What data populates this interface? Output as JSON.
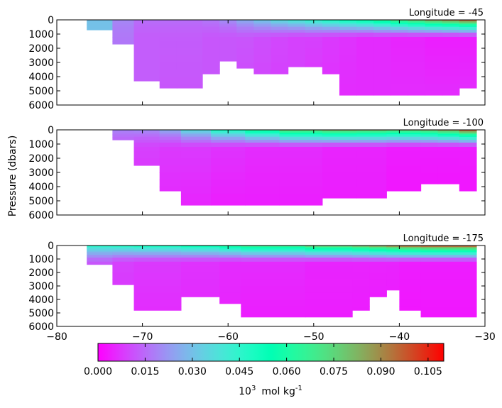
{
  "chart_data": {
    "type": "heatmap",
    "colormap": "rainbow",
    "ylabel": "Pressure (dbars)",
    "xlim": [
      -80,
      -30
    ],
    "ylim": [
      6000,
      0
    ],
    "x_ticks": [
      -80,
      -70,
      -60,
      -50,
      -40,
      -30
    ],
    "y_ticks": [
      0,
      1000,
      2000,
      3000,
      4000,
      5000,
      6000
    ],
    "colorbar": {
      "range": [
        0.0,
        0.11
      ],
      "ticks": [
        "0.000",
        "0.015",
        "0.030",
        "0.045",
        "0.060",
        "0.075",
        "0.090",
        "0.105"
      ],
      "label": "10",
      "label_exp": "3",
      "label_unit": "mol kg",
      "label_unit_exp": "-1"
    },
    "panels": [
      {
        "title": "Longitude = -45",
        "columns": [
          {
            "lat_left": -76.5,
            "lat_right": -73.5,
            "bottom_pressure": 700,
            "surface": 0.03,
            "deep": 0.03,
            "bottom": 0.03
          },
          {
            "lat_left": -73.5,
            "lat_right": -71.0,
            "bottom_pressure": 1700,
            "surface": 0.02,
            "deep": 0.017,
            "bottom": 0.017
          },
          {
            "lat_left": -71.0,
            "lat_right": -68.0,
            "bottom_pressure": 4300,
            "surface": 0.016,
            "deep": 0.013,
            "bottom": 0.013
          },
          {
            "lat_left": -68.0,
            "lat_right": -66.0,
            "bottom_pressure": 4800,
            "surface": 0.016,
            "deep": 0.013,
            "bottom": 0.012
          },
          {
            "lat_left": -66.0,
            "lat_right": -63.0,
            "bottom_pressure": 4800,
            "surface": 0.016,
            "deep": 0.013,
            "bottom": 0.012
          },
          {
            "lat_left": -63.0,
            "lat_right": -61.0,
            "bottom_pressure": 3800,
            "surface": 0.018,
            "deep": 0.012,
            "bottom": 0.012
          },
          {
            "lat_left": -61.0,
            "lat_right": -59.0,
            "bottom_pressure": 2900,
            "surface": 0.022,
            "deep": 0.012,
            "bottom": 0.012
          },
          {
            "lat_left": -59.0,
            "lat_right": -57.0,
            "bottom_pressure": 3400,
            "surface": 0.028,
            "deep": 0.012,
            "bottom": 0.011
          },
          {
            "lat_left": -57.0,
            "lat_right": -55.0,
            "bottom_pressure": 3800,
            "surface": 0.034,
            "deep": 0.011,
            "bottom": 0.01
          },
          {
            "lat_left": -55.0,
            "lat_right": -53.0,
            "bottom_pressure": 3800,
            "surface": 0.04,
            "deep": 0.01,
            "bottom": 0.009
          },
          {
            "lat_left": -53.0,
            "lat_right": -51.0,
            "bottom_pressure": 3300,
            "surface": 0.045,
            "deep": 0.009,
            "bottom": 0.009
          },
          {
            "lat_left": -51.0,
            "lat_right": -49.0,
            "bottom_pressure": 3300,
            "surface": 0.05,
            "deep": 0.009,
            "bottom": 0.008
          },
          {
            "lat_left": -49.0,
            "lat_right": -47.0,
            "bottom_pressure": 3800,
            "surface": 0.055,
            "deep": 0.008,
            "bottom": 0.007
          },
          {
            "lat_left": -47.0,
            "lat_right": -45.0,
            "bottom_pressure": 5300,
            "surface": 0.06,
            "deep": 0.007,
            "bottom": 0.006
          },
          {
            "lat_left": -45.0,
            "lat_right": -43.0,
            "bottom_pressure": 5300,
            "surface": 0.065,
            "deep": 0.006,
            "bottom": 0.006
          },
          {
            "lat_left": -43.0,
            "lat_right": -41.0,
            "bottom_pressure": 5300,
            "surface": 0.072,
            "deep": 0.006,
            "bottom": 0.006
          },
          {
            "lat_left": -41.0,
            "lat_right": -39.0,
            "bottom_pressure": 5300,
            "surface": 0.08,
            "deep": 0.005,
            "bottom": 0.006
          },
          {
            "lat_left": -39.0,
            "lat_right": -37.0,
            "bottom_pressure": 5300,
            "surface": 0.087,
            "deep": 0.005,
            "bottom": 0.006
          },
          {
            "lat_left": -37.0,
            "lat_right": -35.0,
            "bottom_pressure": 5300,
            "surface": 0.095,
            "deep": 0.004,
            "bottom": 0.006
          },
          {
            "lat_left": -35.0,
            "lat_right": -33.0,
            "bottom_pressure": 5300,
            "surface": 0.1,
            "deep": 0.004,
            "bottom": 0.006
          },
          {
            "lat_left": -33.0,
            "lat_right": -31.0,
            "bottom_pressure": 4800,
            "surface": 0.107,
            "deep": 0.004,
            "bottom": 0.006
          }
        ]
      },
      {
        "title": "Longitude = -100",
        "columns": [
          {
            "lat_left": -73.5,
            "lat_right": -71.0,
            "bottom_pressure": 700,
            "surface": 0.02,
            "deep": 0.012,
            "bottom": 0.01
          },
          {
            "lat_left": -71.0,
            "lat_right": -68.0,
            "bottom_pressure": 2500,
            "surface": 0.022,
            "deep": 0.009,
            "bottom": 0.008
          },
          {
            "lat_left": -68.0,
            "lat_right": -65.5,
            "bottom_pressure": 4300,
            "surface": 0.028,
            "deep": 0.008,
            "bottom": 0.006
          },
          {
            "lat_left": -65.5,
            "lat_right": -62.0,
            "bottom_pressure": 5300,
            "surface": 0.04,
            "deep": 0.008,
            "bottom": 0.005
          },
          {
            "lat_left": -62.0,
            "lat_right": -58.0,
            "bottom_pressure": 5300,
            "surface": 0.055,
            "deep": 0.007,
            "bottom": 0.004
          },
          {
            "lat_left": -58.0,
            "lat_right": -54.0,
            "bottom_pressure": 5300,
            "surface": 0.07,
            "deep": 0.006,
            "bottom": 0.004
          },
          {
            "lat_left": -54.0,
            "lat_right": -49.0,
            "bottom_pressure": 5300,
            "surface": 0.085,
            "deep": 0.006,
            "bottom": 0.004
          },
          {
            "lat_left": -49.0,
            "lat_right": -45.0,
            "bottom_pressure": 4800,
            "surface": 0.09,
            "deep": 0.005,
            "bottom": 0.004
          },
          {
            "lat_left": -45.0,
            "lat_right": -41.5,
            "bottom_pressure": 4800,
            "surface": 0.088,
            "deep": 0.005,
            "bottom": 0.004
          },
          {
            "lat_left": -41.5,
            "lat_right": -37.5,
            "bottom_pressure": 4300,
            "surface": 0.085,
            "deep": 0.004,
            "bottom": 0.003
          },
          {
            "lat_left": -37.5,
            "lat_right": -35.5,
            "bottom_pressure": 3800,
            "surface": 0.088,
            "deep": 0.004,
            "bottom": 0.003
          },
          {
            "lat_left": -35.5,
            "lat_right": -33.0,
            "bottom_pressure": 3800,
            "surface": 0.095,
            "deep": 0.004,
            "bottom": 0.003
          },
          {
            "lat_left": -33.0,
            "lat_right": -31.0,
            "bottom_pressure": 4300,
            "surface": 0.108,
            "deep": 0.004,
            "bottom": 0.003
          }
        ]
      },
      {
        "title": "Longitude = -175",
        "columns": [
          {
            "lat_left": -76.5,
            "lat_right": -73.5,
            "bottom_pressure": 1400,
            "surface": 0.05,
            "deep": 0.012,
            "bottom": 0.012
          },
          {
            "lat_left": -73.5,
            "lat_right": -71.0,
            "bottom_pressure": 2900,
            "surface": 0.052,
            "deep": 0.009,
            "bottom": 0.008
          },
          {
            "lat_left": -71.0,
            "lat_right": -65.5,
            "bottom_pressure": 4800,
            "surface": 0.055,
            "deep": 0.008,
            "bottom": 0.006
          },
          {
            "lat_left": -65.5,
            "lat_right": -61.0,
            "bottom_pressure": 3800,
            "surface": 0.06,
            "deep": 0.007,
            "bottom": 0.006
          },
          {
            "lat_left": -61.0,
            "lat_right": -58.5,
            "bottom_pressure": 4300,
            "surface": 0.068,
            "deep": 0.006,
            "bottom": 0.005
          },
          {
            "lat_left": -58.5,
            "lat_right": -51.0,
            "bottom_pressure": 5300,
            "surface": 0.075,
            "deep": 0.006,
            "bottom": 0.004
          },
          {
            "lat_left": -51.0,
            "lat_right": -45.5,
            "bottom_pressure": 5300,
            "surface": 0.085,
            "deep": 0.005,
            "bottom": 0.004
          },
          {
            "lat_left": -45.5,
            "lat_right": -43.5,
            "bottom_pressure": 4800,
            "surface": 0.09,
            "deep": 0.005,
            "bottom": 0.004
          },
          {
            "lat_left": -43.5,
            "lat_right": -41.5,
            "bottom_pressure": 3800,
            "surface": 0.095,
            "deep": 0.005,
            "bottom": 0.004
          },
          {
            "lat_left": -41.5,
            "lat_right": -40.0,
            "bottom_pressure": 3300,
            "surface": 0.1,
            "deep": 0.005,
            "bottom": 0.004
          },
          {
            "lat_left": -40.0,
            "lat_right": -37.5,
            "bottom_pressure": 4800,
            "surface": 0.105,
            "deep": 0.004,
            "bottom": 0.003
          },
          {
            "lat_left": -37.5,
            "lat_right": -31.0,
            "bottom_pressure": 5300,
            "surface": 0.108,
            "deep": 0.004,
            "bottom": 0.003
          }
        ]
      }
    ]
  }
}
